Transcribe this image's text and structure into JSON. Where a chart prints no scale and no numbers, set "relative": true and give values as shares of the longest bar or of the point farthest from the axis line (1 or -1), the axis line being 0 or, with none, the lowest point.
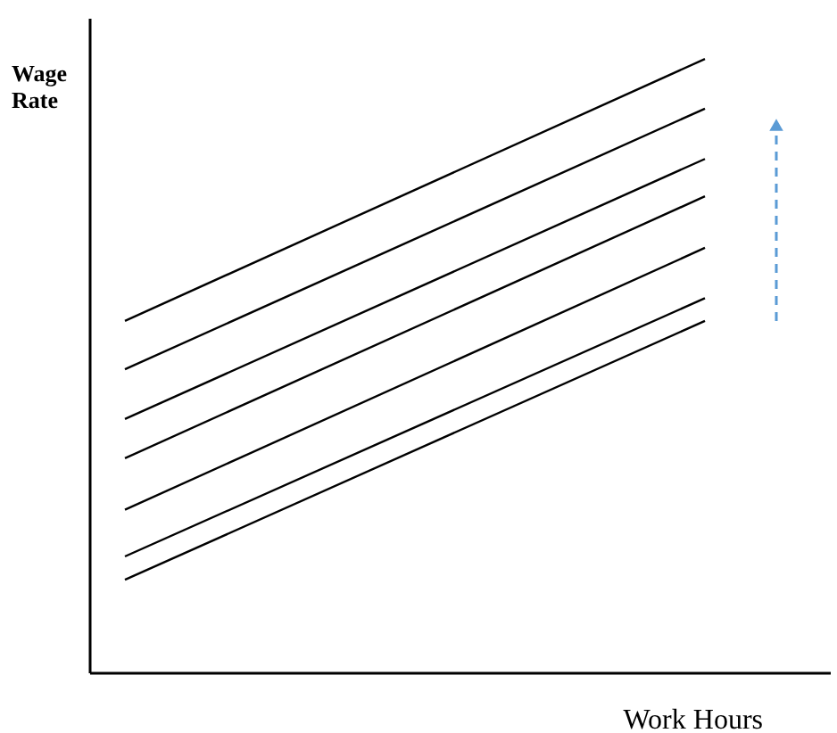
{
  "chart_data": {
    "type": "line",
    "xlabel": "Work Hours",
    "ylabel": "Wage Rate",
    "relative": true,
    "categories": [
      null,
      null
    ],
    "marker": "none",
    "line_style": "solid",
    "series": [
      {
        "color": "#000000",
        "values": [
          0.573,
          1.0
        ]
      },
      {
        "color": "#000000",
        "values": [
          0.494,
          0.919
        ]
      },
      {
        "color": "#000000",
        "values": [
          0.413,
          0.837
        ]
      },
      {
        "color": "#000000",
        "values": [
          0.349,
          0.776
        ]
      },
      {
        "color": "#000000",
        "values": [
          0.265,
          0.692
        ]
      },
      {
        "color": "#000000",
        "values": [
          0.189,
          0.61
        ]
      },
      {
        "color": "#000000",
        "values": [
          0.151,
          0.573
        ]
      }
    ]
  }
}
